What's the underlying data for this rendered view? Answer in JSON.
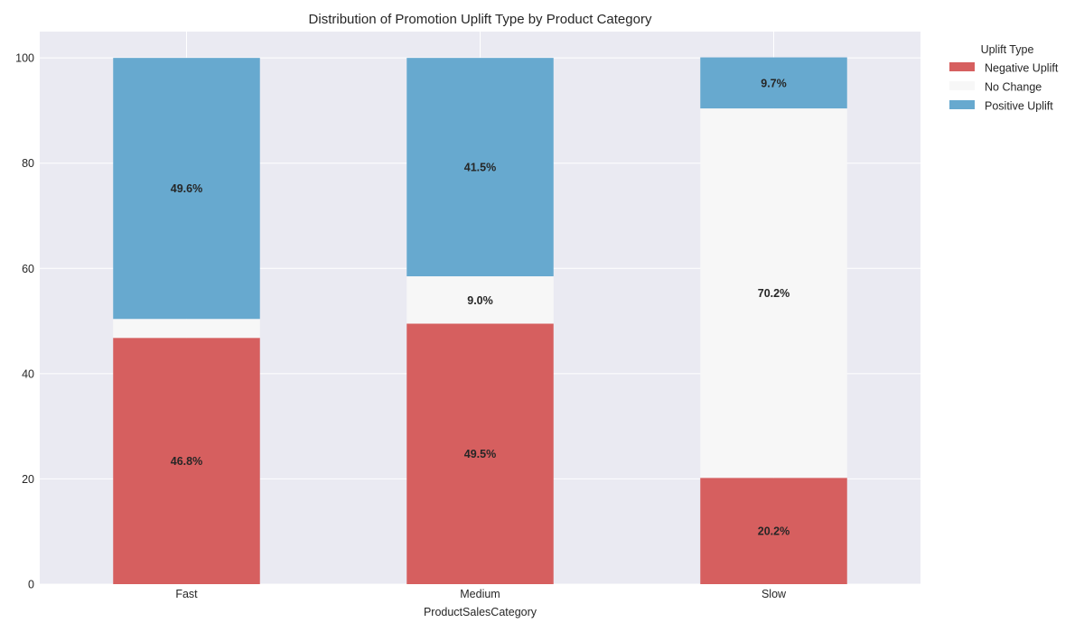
{
  "chart_data": {
    "type": "bar",
    "stacked": true,
    "title": "Distribution of Promotion Uplift Type by Product Category",
    "xlabel": "ProductSalesCategory",
    "ylabel": "",
    "categories": [
      "Fast",
      "Medium",
      "Slow"
    ],
    "ylim": [
      0,
      105
    ],
    "yticks": [
      0,
      20,
      40,
      60,
      80,
      100
    ],
    "grid": true,
    "legend": {
      "title": "Uplift Type",
      "position": "outside-top-right"
    },
    "series": [
      {
        "name": "Negative Uplift",
        "color": "#d65f5f",
        "values": [
          46.8,
          49.5,
          20.2
        ],
        "labels": [
          "46.8%",
          "49.5%",
          "20.2%"
        ]
      },
      {
        "name": "No Change",
        "color": "#f7f7f7",
        "values": [
          3.6,
          9.0,
          70.2
        ],
        "labels": [
          "",
          "9.0%",
          "70.2%"
        ]
      },
      {
        "name": "Positive Uplift",
        "color": "#67a9cf",
        "values": [
          49.6,
          41.5,
          9.7
        ],
        "labels": [
          "49.6%",
          "41.5%",
          "9.7%"
        ]
      }
    ],
    "background": "#eaeaf2",
    "gridcolor": "#ffffff"
  }
}
